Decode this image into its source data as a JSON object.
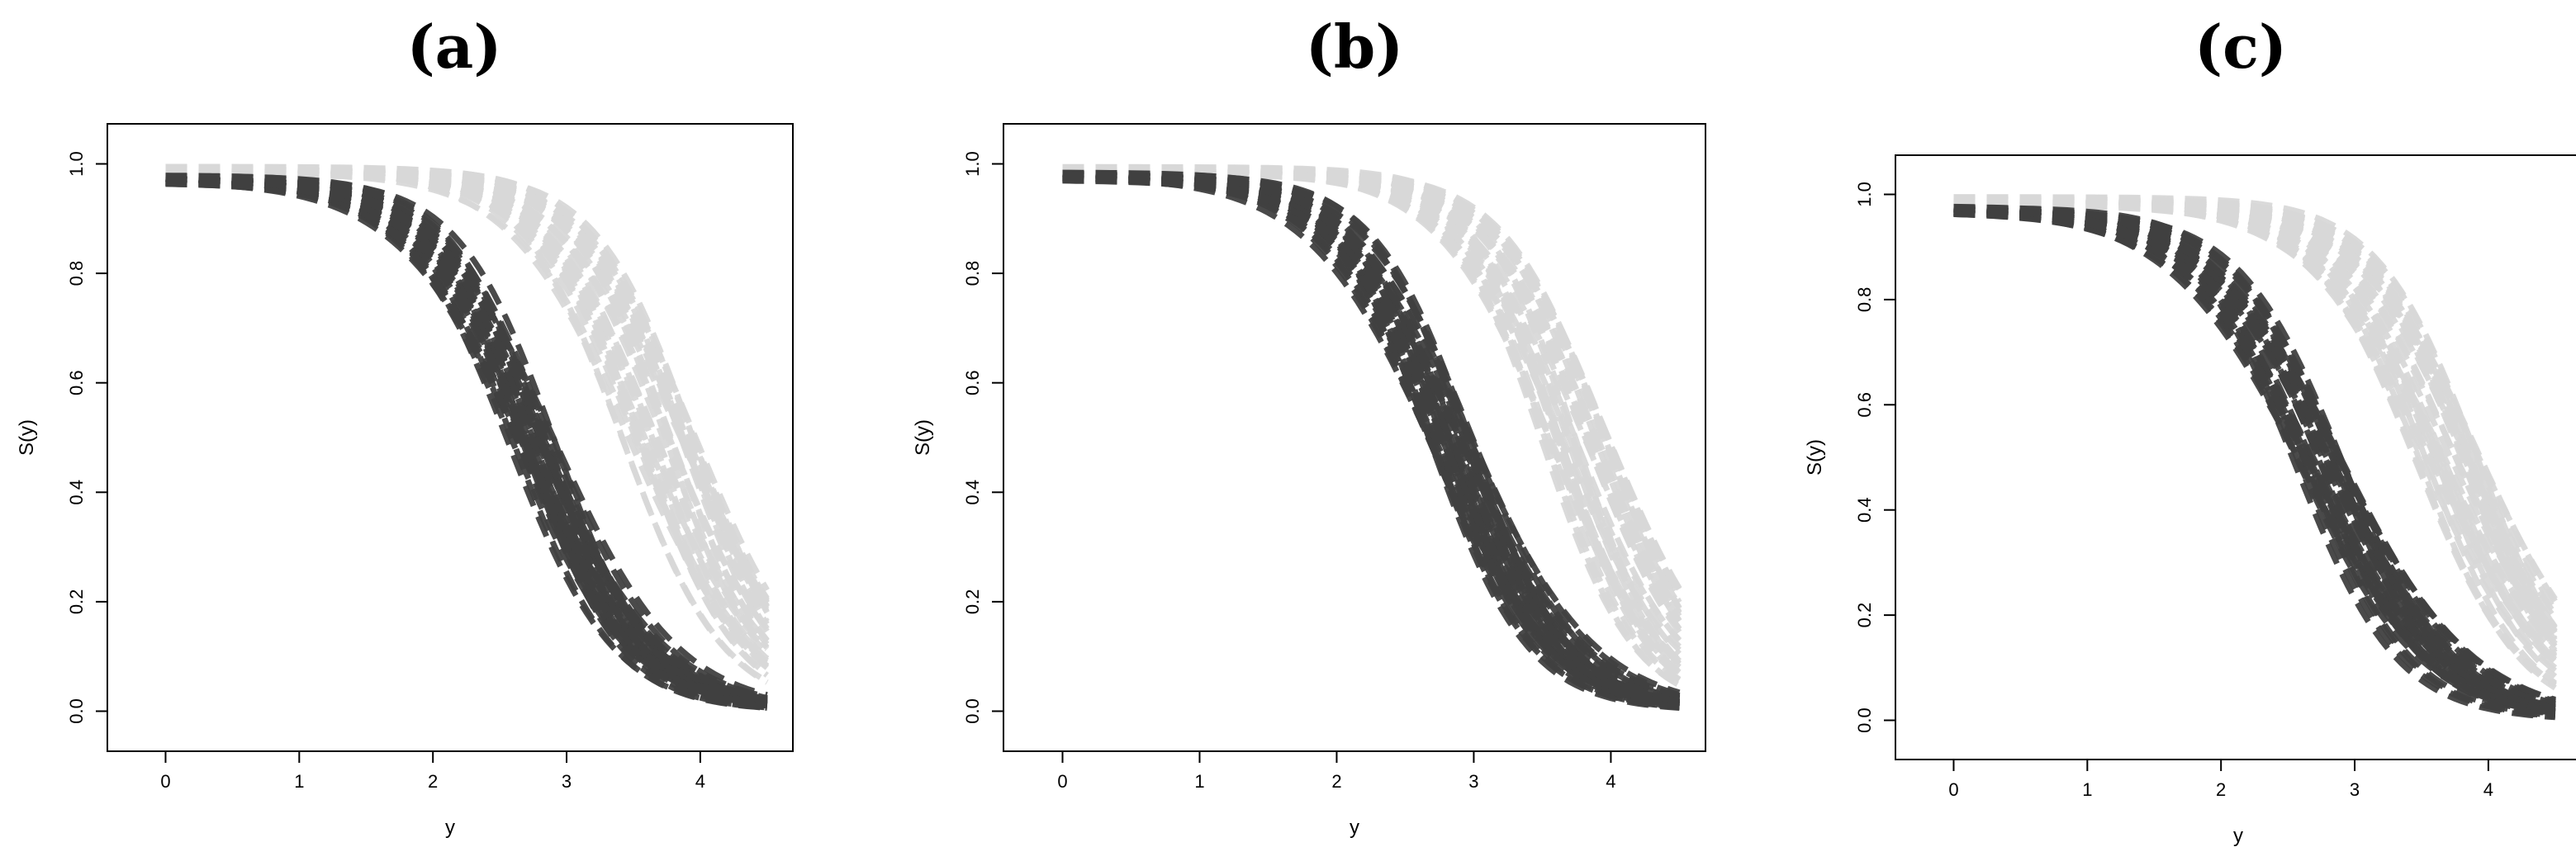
{
  "chart_data": [
    {
      "type": "line",
      "panel_label": "(a)",
      "xlabel": "y",
      "ylabel": "S(y)",
      "xlim": [
        0,
        4.5
      ],
      "ylim": [
        0,
        1.0
      ],
      "xticks": [
        "0",
        "1",
        "2",
        "3",
        "4"
      ],
      "yticks": [
        "0.0",
        "0.2",
        "0.4",
        "0.6",
        "0.8",
        "1.0"
      ],
      "grid": false,
      "legend": "none",
      "series": [
        {
          "color": "#404040",
          "n_curves": 40,
          "median_y50": 2.75,
          "spread": 0.18,
          "scale": 0.42,
          "start": 0.98
        },
        {
          "color": "#d8d8d8",
          "n_curves": 40,
          "median_y50": 3.7,
          "spread": 0.28,
          "scale": 0.4,
          "start": 0.995
        }
      ]
    },
    {
      "type": "line",
      "panel_label": "(b)",
      "xlabel": "y",
      "ylabel": "S(y)",
      "xlim": [
        0,
        4.5
      ],
      "ylim": [
        0,
        1.0
      ],
      "xticks": [
        "0",
        "1",
        "2",
        "3",
        "4"
      ],
      "yticks": [
        "0.0",
        "0.2",
        "0.4",
        "0.6",
        "0.8",
        "1.0"
      ],
      "grid": false,
      "legend": "none",
      "series": [
        {
          "color": "#404040",
          "n_curves": 40,
          "median_y50": 2.85,
          "spread": 0.17,
          "scale": 0.4,
          "start": 0.985
        },
        {
          "color": "#d8d8d8",
          "n_curves": 40,
          "median_y50": 3.75,
          "spread": 0.25,
          "scale": 0.38,
          "start": 0.995
        }
      ]
    },
    {
      "type": "line",
      "panel_label": "(c)",
      "xlabel": "y",
      "ylabel": "S(y)",
      "xlim": [
        0,
        4.5
      ],
      "ylim": [
        0,
        1.0
      ],
      "xticks": [
        "0",
        "1",
        "2",
        "3",
        "4"
      ],
      "yticks": [
        "0.0",
        "0.2",
        "0.4",
        "0.6",
        "0.8",
        "1.0"
      ],
      "grid": false,
      "legend": "none",
      "series": [
        {
          "color": "#404040",
          "n_curves": 40,
          "median_y50": 2.75,
          "spread": 0.2,
          "scale": 0.45,
          "start": 0.98
        },
        {
          "color": "#d8d8d8",
          "n_curves": 40,
          "median_y50": 3.7,
          "spread": 0.25,
          "scale": 0.42,
          "start": 0.995
        }
      ]
    }
  ]
}
